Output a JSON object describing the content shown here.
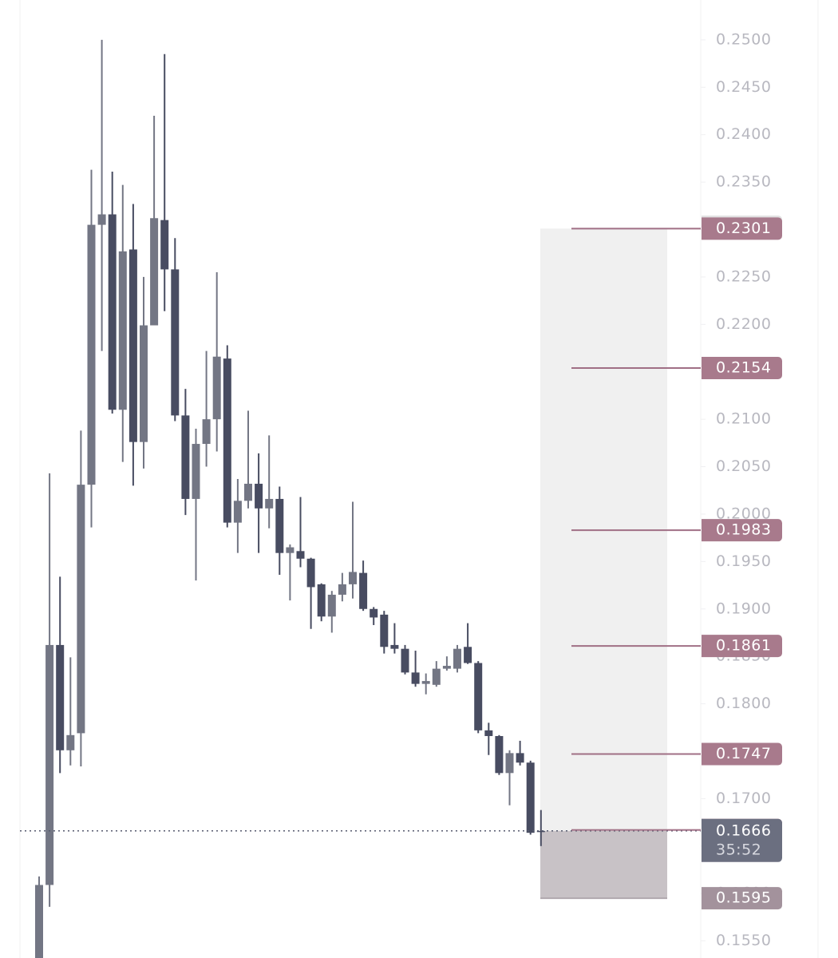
{
  "chart_data": {
    "type": "candlestick",
    "ylim": [
      0.1532,
      0.2542
    ],
    "yticks": [
      {
        "value": 0.25,
        "label": "0.2500"
      },
      {
        "value": 0.245,
        "label": "0.2450"
      },
      {
        "value": 0.24,
        "label": "0.2400"
      },
      {
        "value": 0.235,
        "label": "0.2350"
      },
      {
        "value": 0.23,
        "label": "0.2300"
      },
      {
        "value": 0.225,
        "label": "0.2250"
      },
      {
        "value": 0.22,
        "label": "0.2200"
      },
      {
        "value": 0.215,
        "label": "0.2150"
      },
      {
        "value": 0.21,
        "label": "0.2100"
      },
      {
        "value": 0.205,
        "label": "0.2050"
      },
      {
        "value": 0.2,
        "label": "0.2000"
      },
      {
        "value": 0.195,
        "label": "0.1950"
      },
      {
        "value": 0.19,
        "label": "0.1900"
      },
      {
        "value": 0.185,
        "label": "0.1850"
      },
      {
        "value": 0.18,
        "label": "0.1800"
      },
      {
        "value": 0.175,
        "label": "0.1750"
      },
      {
        "value": 0.17,
        "label": "0.1700"
      },
      {
        "value": 0.165,
        "label": "0.1650"
      },
      {
        "value": 0.16,
        "label": "0.1600"
      },
      {
        "value": 0.155,
        "label": "0.1550"
      }
    ],
    "up_color": "#737684",
    "down_color": "#484c61",
    "open": [
      0.1532,
      0.1609,
      0.1862,
      0.1751,
      0.1769,
      0.2031,
      0.2305,
      0.2316,
      0.211,
      0.2279,
      0.2076,
      0.2199,
      0.231,
      0.2258,
      0.2104,
      0.2016,
      0.2074,
      0.21,
      0.2164,
      0.1991,
      0.2014,
      0.2032,
      0.2006,
      0.2016,
      0.1959,
      0.1961,
      0.1953,
      0.1926,
      0.1892,
      0.1915,
      0.1926,
      0.1938,
      0.19,
      0.1894,
      0.1862,
      0.1858,
      0.1833,
      0.1821,
      0.182,
      0.1837,
      0.1837,
      0.186,
      0.1843,
      0.1772,
      0.1766,
      0.1727,
      0.1748,
      0.1738,
      0.1666
    ],
    "high": [
      0.1618,
      0.2043,
      0.1934,
      0.1849,
      0.2088,
      0.2363,
      0.25,
      0.2361,
      0.2347,
      0.2327,
      0.225,
      0.242,
      0.2485,
      0.2291,
      0.2132,
      0.209,
      0.2172,
      0.2255,
      0.2178,
      0.2037,
      0.2109,
      0.2064,
      0.2083,
      0.2029,
      0.1968,
      0.2018,
      0.1954,
      0.1927,
      0.1919,
      0.1938,
      0.2013,
      0.1951,
      0.1902,
      0.1898,
      0.1885,
      0.1862,
      0.1856,
      0.1832,
      0.1845,
      0.185,
      0.1862,
      0.1885,
      0.1845,
      0.178,
      0.1767,
      0.1751,
      0.1761,
      0.174,
      0.1688
    ],
    "low": [
      0.1532,
      0.1586,
      0.1727,
      0.1735,
      0.1734,
      0.1986,
      0.2172,
      0.2106,
      0.2055,
      0.203,
      0.2048,
      0.2199,
      0.2214,
      0.2098,
      0.1999,
      0.193,
      0.205,
      0.2066,
      0.1986,
      0.1959,
      0.2006,
      0.1959,
      0.1985,
      0.1936,
      0.1909,
      0.1944,
      0.1879,
      0.1887,
      0.1875,
      0.1908,
      0.1911,
      0.1898,
      0.1883,
      0.1853,
      0.1853,
      0.1831,
      0.1818,
      0.181,
      0.1818,
      0.1835,
      0.1833,
      0.1842,
      0.1769,
      0.1746,
      0.1725,
      0.1693,
      0.1735,
      0.1662,
      0.165
    ],
    "close": [
      0.1609,
      0.1862,
      0.1751,
      0.1767,
      0.2031,
      0.2305,
      0.2316,
      0.211,
      0.2277,
      0.2076,
      0.2199,
      0.2312,
      0.2258,
      0.2104,
      0.2016,
      0.2074,
      0.21,
      0.2166,
      0.1991,
      0.2014,
      0.2032,
      0.2006,
      0.2016,
      0.1959,
      0.1965,
      0.1953,
      0.1923,
      0.1892,
      0.1915,
      0.1926,
      0.1939,
      0.19,
      0.1891,
      0.186,
      0.1858,
      0.1833,
      0.1821,
      0.1824,
      0.1837,
      0.184,
      0.1858,
      0.1843,
      0.1772,
      0.1766,
      0.1727,
      0.1748,
      0.1738,
      0.1664,
      0.1665
    ],
    "mark_price": 0.2303,
    "levels": [
      0.2301,
      0.2154,
      0.1983,
      0.1861,
      0.1747,
      0.1667
    ],
    "level_color": "#a87a8c",
    "last_price": 0.1666,
    "countdown": "35:52",
    "stop_price": 0.1595
  }
}
